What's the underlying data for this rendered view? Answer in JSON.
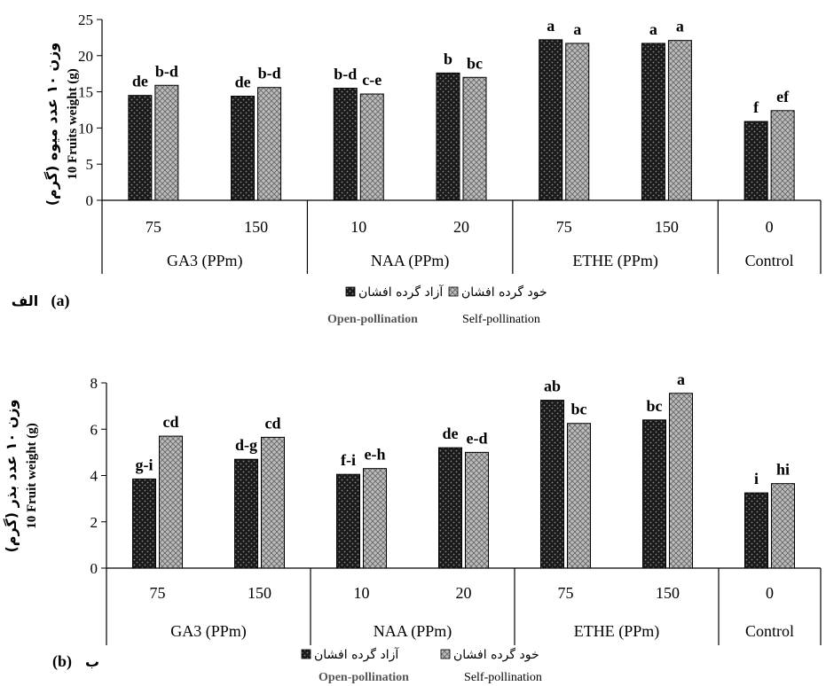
{
  "colors": {
    "open_fill": "#111111",
    "self_fill": "#9e9e9e",
    "axis": "#000000"
  },
  "legend": {
    "open_fa": "آزاد گرده افشان",
    "self_fa": "خود گرده افشان",
    "open_en": "Open-pollination",
    "self_en": "Self-pollination"
  },
  "chart_data": [
    {
      "type": "bar",
      "panel_label": "(a)",
      "panel_label_fa": "الف",
      "ylabel": "10 Fruits weight (g)",
      "ylabel_fa": "وزن ۱۰ عدد میوه (گرم)",
      "ylim": [
        0,
        25
      ],
      "yticks": [
        0,
        5,
        10,
        15,
        20,
        25
      ],
      "categories": [
        "75",
        "150",
        "10",
        "20",
        "75",
        "150",
        "0"
      ],
      "groups": [
        {
          "label": "GA3 (PPm)",
          "span": 2
        },
        {
          "label": "NAA (PPm)",
          "span": 2
        },
        {
          "label": "ETHE (PPm)",
          "span": 2
        },
        {
          "label": "Control",
          "span": 1
        }
      ],
      "series": [
        {
          "name": "Open-pollination",
          "values": [
            14.5,
            14.4,
            15.5,
            17.6,
            22.2,
            21.7,
            10.9
          ],
          "labels": [
            "de",
            "de",
            "b-d",
            "b",
            "a",
            "a",
            "f"
          ]
        },
        {
          "name": "Self-pollination",
          "values": [
            15.9,
            15.6,
            14.7,
            17.0,
            21.7,
            22.1,
            12.4
          ],
          "labels": [
            "b-d",
            "b-d",
            "c-e",
            "bc",
            "a",
            "a",
            "ef"
          ]
        }
      ],
      "grid": false,
      "legend_position": "bottom"
    },
    {
      "type": "bar",
      "panel_label": "(b)",
      "panel_label_fa": "ب",
      "ylabel": "10 Fruit weight (g)",
      "ylabel_fa": "وزن ۱۰ عدد بذر (گرم)",
      "ylim": [
        0,
        8
      ],
      "yticks": [
        0,
        2,
        4,
        6,
        8
      ],
      "categories": [
        "75",
        "150",
        "10",
        "20",
        "75",
        "150",
        "0"
      ],
      "groups": [
        {
          "label": "GA3 (PPm)",
          "span": 2
        },
        {
          "label": "NAA (PPm)",
          "span": 2
        },
        {
          "label": "ETHE (PPm)",
          "span": 2
        },
        {
          "label": "Control",
          "span": 1
        }
      ],
      "series": [
        {
          "name": "Open-pollination",
          "values": [
            3.85,
            4.7,
            4.05,
            5.2,
            7.25,
            6.4,
            3.25
          ],
          "labels": [
            "g-i",
            "d-g",
            "f-i",
            "de",
            "ab",
            "bc",
            "i"
          ]
        },
        {
          "name": "Self-pollination",
          "values": [
            5.7,
            5.65,
            4.3,
            5.0,
            6.25,
            7.55,
            3.65
          ],
          "labels": [
            "cd",
            "cd",
            "e-h",
            "e-d",
            "bc",
            "a",
            "hi"
          ]
        }
      ],
      "grid": false,
      "legend_position": "bottom"
    }
  ]
}
